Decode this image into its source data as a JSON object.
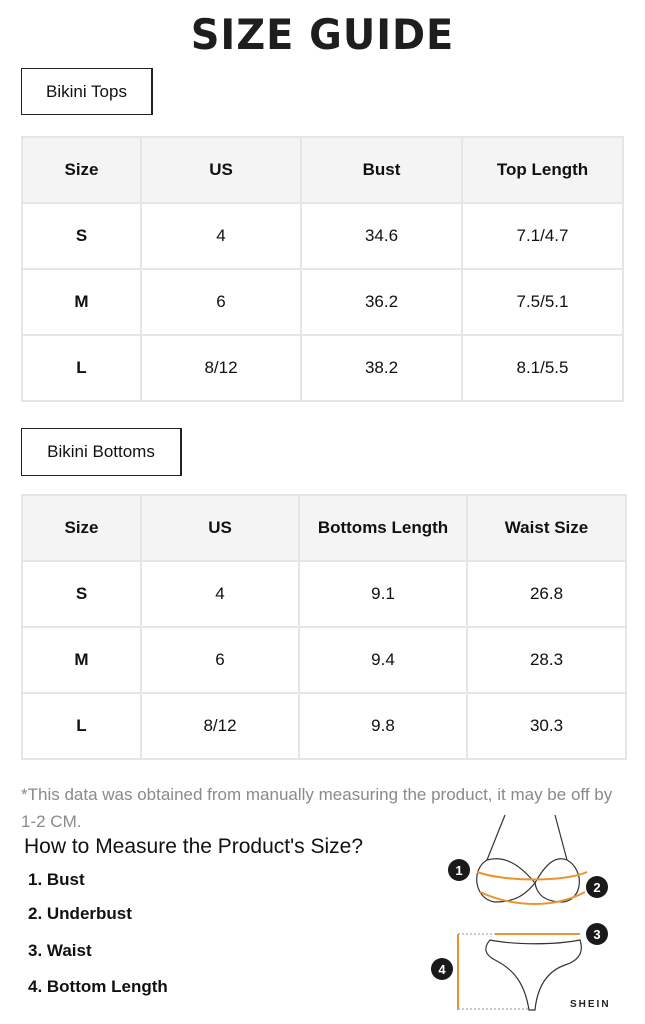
{
  "title": "SIZE GUIDE",
  "tops": {
    "label": "Bikini Tops",
    "headers": [
      "Size",
      "US",
      "Bust",
      "Top Length"
    ],
    "rows": [
      [
        "S",
        "4",
        "34.6",
        "7.1/4.7"
      ],
      [
        "M",
        "6",
        "36.2",
        "7.5/5.1"
      ],
      [
        "L",
        "8/12",
        "38.2",
        "8.1/5.5"
      ]
    ]
  },
  "bottoms": {
    "label": "Bikini Bottoms",
    "headers": [
      "Size",
      "US",
      "Bottoms Length",
      "Waist Size"
    ],
    "rows": [
      [
        "S",
        "4",
        "9.1",
        "26.8"
      ],
      [
        "M",
        "6",
        "9.4",
        "28.3"
      ],
      [
        "L",
        "8/12",
        "9.8",
        "30.3"
      ]
    ]
  },
  "note": "*This data was obtained from manually measuring the product, it may be off by 1-2 CM.",
  "howto": {
    "title": "How to Measure the Product's Size?",
    "steps": [
      "1. Bust",
      "2. Underbust",
      "3. Waist",
      "4. Bottom Length"
    ],
    "markers": [
      "1",
      "2",
      "3",
      "4"
    ],
    "brand": "SHEIN"
  },
  "colors": {
    "measure_line": "#e8952f",
    "border": "#e6e6e6",
    "header_bg": "#f4f4f4"
  }
}
